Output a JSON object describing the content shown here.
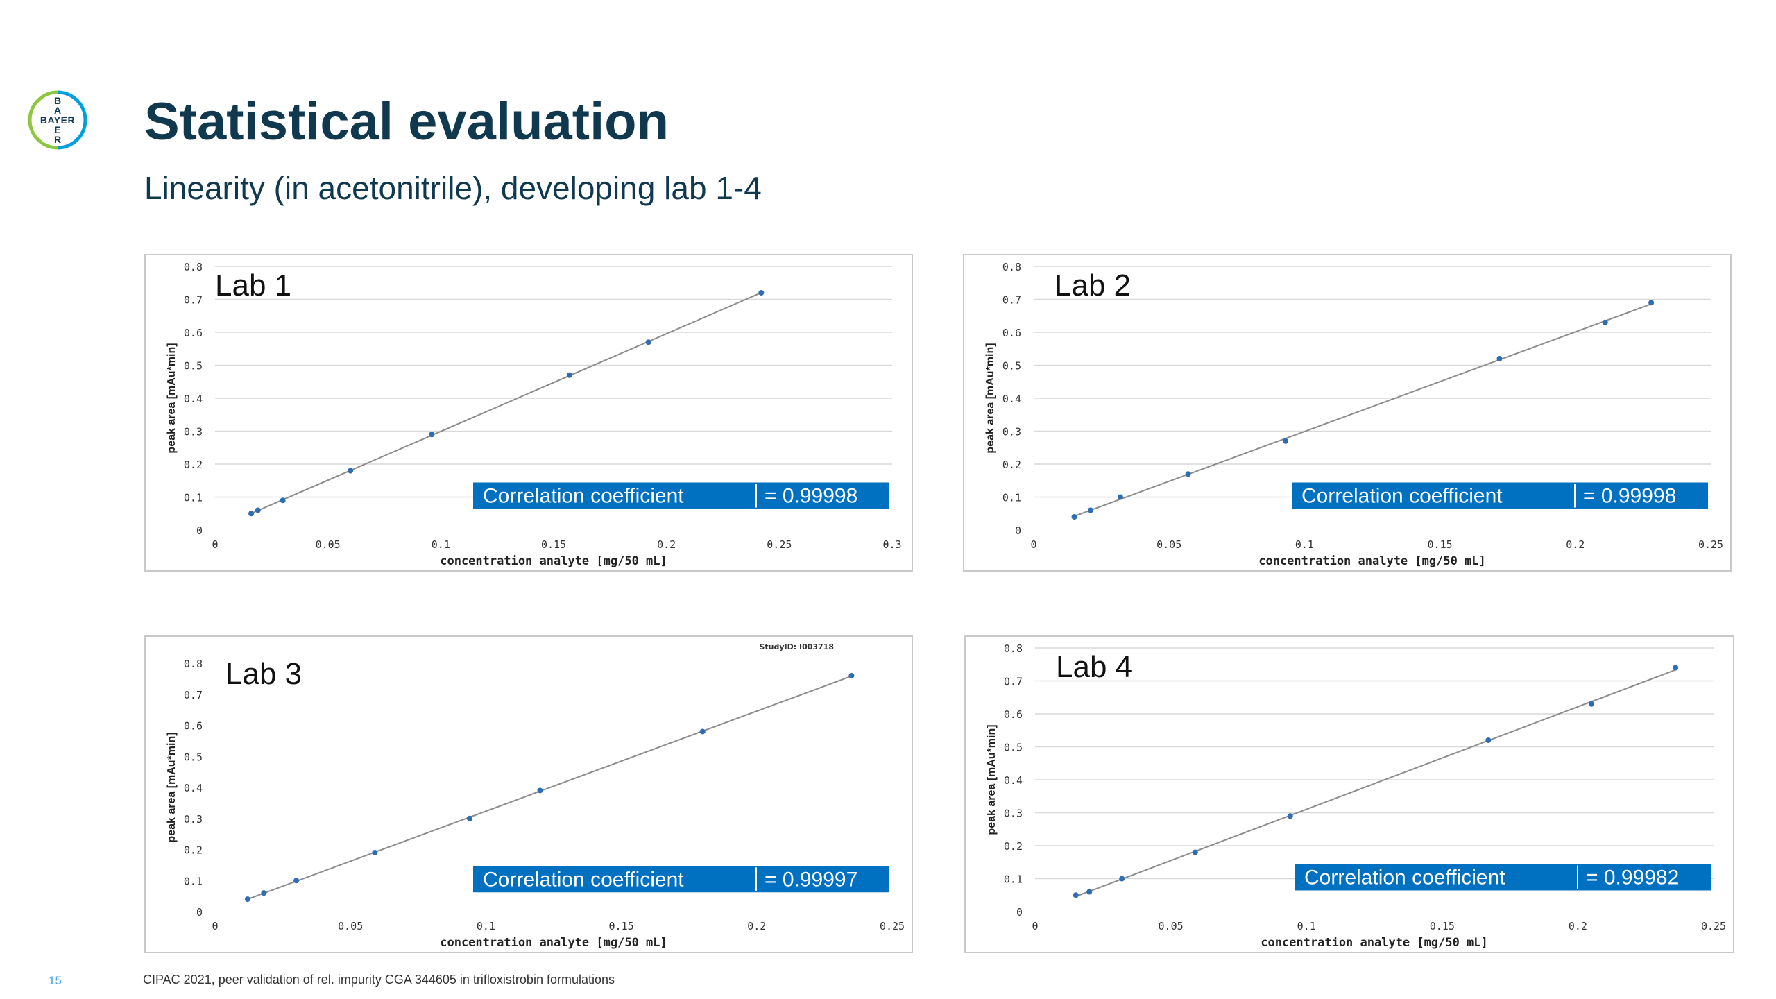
{
  "slide": {
    "title": "Statistical evaluation",
    "subtitle": "Linearity (in acetonitrile), developing lab 1-4",
    "number": "15",
    "footer": "CIPAC 2021, peer validation of rel. impurity CGA 344605 in trifloxistrobin formulations",
    "logo_text": {
      "row": "BAYER",
      "col": "BAYER"
    },
    "colors": {
      "title": "#10384f",
      "accent": "#0070c0",
      "point": "#2e6db4",
      "line": "#8c8c8c",
      "logo_green": "#8dc63f",
      "logo_blue": "#00a0dc"
    }
  },
  "chart_data": [
    {
      "type": "scatter",
      "title": "Lab 1",
      "xlabel": "concentration analyte [mg/50 mL]",
      "ylabel": "peak area [mAu*min]",
      "xlim": [
        0,
        0.3
      ],
      "ylim": [
        0,
        0.8
      ],
      "xticks": [
        0,
        0.05,
        0.1,
        0.15,
        0.2,
        0.25,
        0.3
      ],
      "xtick_labels": [
        "0",
        "0.05",
        "0.1",
        "0.15",
        "0.2",
        "0.25",
        "0.3"
      ],
      "yticks": [
        0,
        0.1,
        0.2,
        0.3,
        0.4,
        0.5,
        0.6,
        0.7,
        0.8
      ],
      "ytick_labels": [
        "0",
        "0.1",
        "0.2",
        "0.3",
        "0.4",
        "0.5",
        "0.6",
        "0.7",
        "0.8"
      ],
      "grid": "horizontal",
      "x": [
        0.016,
        0.019,
        0.03,
        0.06,
        0.096,
        0.157,
        0.192,
        0.242
      ],
      "y": [
        0.05,
        0.06,
        0.09,
        0.18,
        0.29,
        0.47,
        0.57,
        0.72
      ],
      "trendline": true,
      "annotation": {
        "label": "Correlation coefficient",
        "value": "= 0.99998"
      }
    },
    {
      "type": "scatter",
      "title": "Lab 2",
      "xlabel": "concentration analyte [mg/50 mL]",
      "ylabel": "peak area [mAu*min]",
      "xlim": [
        0,
        0.25
      ],
      "ylim": [
        0,
        0.8
      ],
      "xticks": [
        0,
        0.05,
        0.1,
        0.15,
        0.2,
        0.25
      ],
      "xtick_labels": [
        "0",
        "0.05",
        "0.1",
        "0.15",
        "0.2",
        "0.25"
      ],
      "yticks": [
        0,
        0.1,
        0.2,
        0.3,
        0.4,
        0.5,
        0.6,
        0.7,
        0.8
      ],
      "ytick_labels": [
        "0",
        "0.1",
        "0.2",
        "0.3",
        "0.4",
        "0.5",
        "0.6",
        "0.7",
        "0.8"
      ],
      "grid": "horizontal",
      "x": [
        0.015,
        0.021,
        0.032,
        0.057,
        0.093,
        0.172,
        0.211,
        0.228
      ],
      "y": [
        0.04,
        0.06,
        0.1,
        0.17,
        0.27,
        0.52,
        0.63,
        0.69
      ],
      "trendline": true,
      "annotation": {
        "label": "Correlation coefficient",
        "value": "= 0.99998"
      }
    },
    {
      "type": "scatter",
      "title": "Lab 3",
      "note": "StudyID: I003718",
      "xlabel": "concentration analyte [mg/50 mL]",
      "ylabel": "peak area [mAu*min]",
      "xlim": [
        0,
        0.25
      ],
      "ylim": [
        0,
        0.8
      ],
      "xticks": [
        0,
        0.05,
        0.1,
        0.15,
        0.2,
        0.25
      ],
      "xtick_labels": [
        "0",
        "0.05",
        "0.1",
        "0.15",
        "0.2",
        "0.25"
      ],
      "yticks": [
        0,
        0.1,
        0.2,
        0.3,
        0.4,
        0.5,
        0.6,
        0.7,
        0.8
      ],
      "ytick_labels": [
        "0",
        "0.1",
        "0.2",
        "0.3",
        "0.4",
        "0.5",
        "0.6",
        "0.7",
        "0.8"
      ],
      "grid": "none",
      "x": [
        0.012,
        0.018,
        0.03,
        0.059,
        0.094,
        0.12,
        0.18,
        0.235
      ],
      "y": [
        0.04,
        0.06,
        0.1,
        0.19,
        0.3,
        0.39,
        0.58,
        0.76
      ],
      "trendline": true,
      "annotation": {
        "label": "Correlation coefficient",
        "value": "= 0.99997"
      }
    },
    {
      "type": "scatter",
      "title": "Lab 4",
      "xlabel": "concentration analyte [mg/50 mL]",
      "ylabel": "peak area [mAu*min]",
      "xlim": [
        0,
        0.25
      ],
      "ylim": [
        0,
        0.8
      ],
      "xticks": [
        0,
        0.05,
        0.1,
        0.15,
        0.2,
        0.25
      ],
      "xtick_labels": [
        "0",
        "0.05",
        "0.1",
        "0.15",
        "0.2",
        "0.25"
      ],
      "yticks": [
        0,
        0.1,
        0.2,
        0.3,
        0.4,
        0.5,
        0.6,
        0.7,
        0.8
      ],
      "ytick_labels": [
        "0",
        "0.1",
        "0.2",
        "0.3",
        "0.4",
        "0.5",
        "0.6",
        "0.7",
        "0.8"
      ],
      "grid": "horizontal",
      "x": [
        0.015,
        0.02,
        0.032,
        0.059,
        0.094,
        0.167,
        0.205,
        0.236
      ],
      "y": [
        0.05,
        0.06,
        0.1,
        0.18,
        0.29,
        0.52,
        0.63,
        0.74
      ],
      "trendline": true,
      "annotation": {
        "label": "Correlation coefficient",
        "value": "= 0.99982"
      }
    }
  ]
}
